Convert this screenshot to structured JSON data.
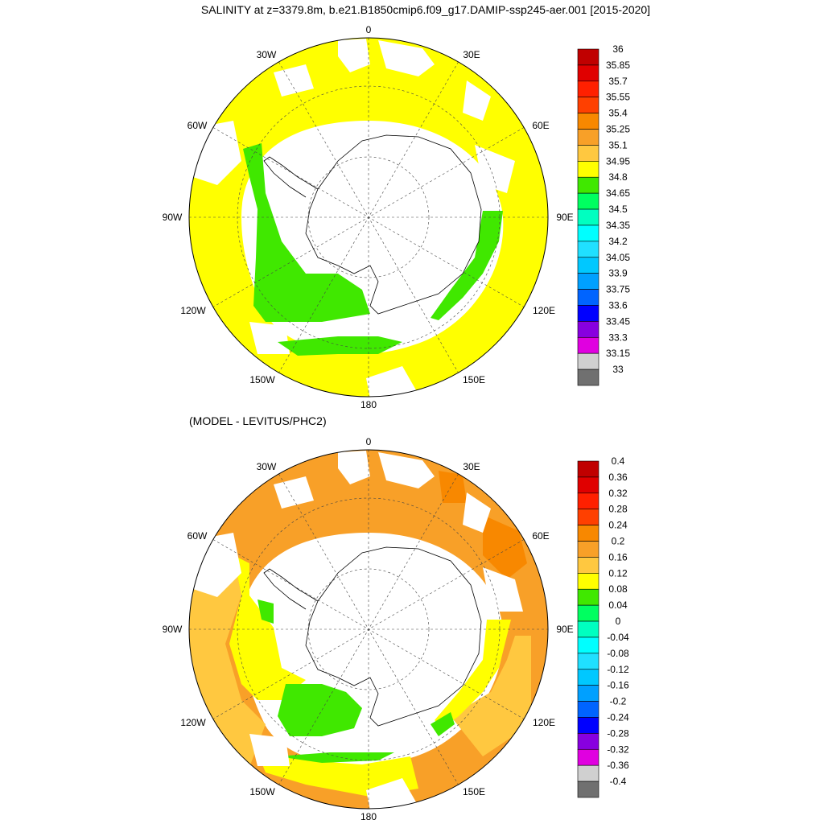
{
  "title": "SALINITY at z=3379.8m, b.e21.B1850cmip6.f09_g17.DAMIP-ssp245-aer.001 [2015-2020]",
  "subtitle": "(MODEL - LEVITUS/PHC2)",
  "longitude_labels": [
    "0",
    "30E",
    "60E",
    "90E",
    "120E",
    "150E",
    "180",
    "150W",
    "120W",
    "90W",
    "60W",
    "30W"
  ],
  "colors": {
    "land": "#ffffff",
    "ocean_missing": "#ffffff",
    "coast": "#000000"
  },
  "colorbar_top": {
    "labels": [
      "36",
      "35.85",
      "35.7",
      "35.55",
      "35.4",
      "35.25",
      "35.1",
      "34.95",
      "34.8",
      "34.65",
      "34.5",
      "34.35",
      "34.2",
      "34.05",
      "33.9",
      "33.75",
      "33.6",
      "33.45",
      "33.3",
      "33.15",
      "33"
    ],
    "colors": [
      "#c00000",
      "#e00000",
      "#ff2000",
      "#ff4000",
      "#f88800",
      "#f8a028",
      "#ffc840",
      "#ffff00",
      "#40e800",
      "#00ff60",
      "#00ffc0",
      "#00ffff",
      "#20e0ff",
      "#00c8ff",
      "#00a0ff",
      "#0064ff",
      "#0000ff",
      "#8800e0",
      "#e000e0",
      "#d0d0d0",
      "#707070"
    ]
  },
  "colorbar_bottom": {
    "labels": [
      "0.4",
      "0.36",
      "0.32",
      "0.28",
      "0.24",
      "0.2",
      "0.16",
      "0.12",
      "0.08",
      "0.04",
      "0",
      "-0.04",
      "-0.08",
      "-0.12",
      "-0.16",
      "-0.2",
      "-0.24",
      "-0.28",
      "-0.32",
      "-0.36",
      "-0.4"
    ],
    "colors": [
      "#c00000",
      "#e00000",
      "#ff2000",
      "#ff4000",
      "#f88800",
      "#f8a028",
      "#ffc840",
      "#ffff00",
      "#40e800",
      "#00ff60",
      "#00ffc0",
      "#00ffff",
      "#20e0ff",
      "#00c8ff",
      "#00a0ff",
      "#0064ff",
      "#0000ff",
      "#8800e0",
      "#e000e0",
      "#d0d0d0",
      "#707070"
    ]
  },
  "map_top": {
    "field_colors": {
      "dominant": "#ffff00",
      "secondary": "#40e800"
    }
  },
  "map_bottom": {
    "field_colors": {
      "dominant": "#f8a028",
      "secondary": "#ffc840",
      "tertiary": "#ffff00",
      "quaternary": "#40e800",
      "high": "#f88800"
    }
  }
}
